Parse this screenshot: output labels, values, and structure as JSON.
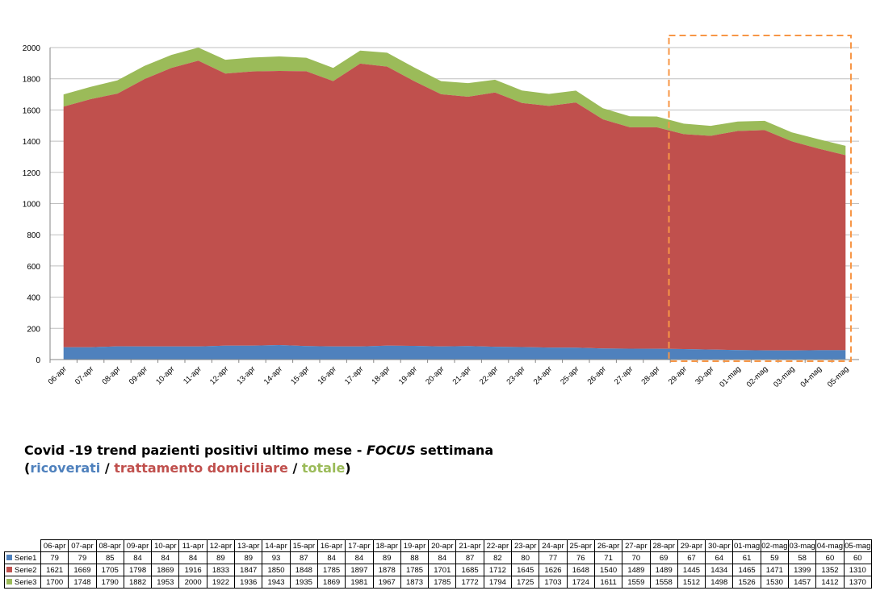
{
  "chart_data": {
    "type": "area",
    "stacked": true,
    "categories": [
      "06-apr",
      "07-apr",
      "08-apr",
      "09-apr",
      "10-apr",
      "11-apr",
      "12-apr",
      "13-apr",
      "14-apr",
      "15-apr",
      "16-apr",
      "17-apr",
      "18-apr",
      "19-apr",
      "20-apr",
      "21-apr",
      "22-apr",
      "23-apr",
      "24-apr",
      "25-apr",
      "26-apr",
      "27-apr",
      "28-apr",
      "29-apr",
      "30-apr",
      "01-mag",
      "02-mag",
      "03-mag",
      "04-mag",
      "05-mag"
    ],
    "series": [
      {
        "name": "Serie1",
        "color": "#4F81BD",
        "values": [
          79,
          79,
          85,
          84,
          84,
          84,
          89,
          89,
          93,
          87,
          84,
          84,
          89,
          88,
          84,
          87,
          82,
          80,
          77,
          76,
          71,
          70,
          69,
          67,
          64,
          61,
          59,
          58,
          60,
          60
        ]
      },
      {
        "name": "Serie2",
        "color": "#C0504D",
        "values": [
          1621,
          1669,
          1705,
          1798,
          1869,
          1916,
          1833,
          1847,
          1850,
          1848,
          1785,
          1897,
          1878,
          1785,
          1701,
          1685,
          1712,
          1645,
          1626,
          1648,
          1540,
          1489,
          1489,
          1445,
          1434,
          1465,
          1471,
          1399,
          1352,
          1310
        ]
      },
      {
        "name": "Serie3",
        "color": "#9BBB59",
        "values": [
          1700,
          1748,
          1790,
          1882,
          1953,
          2000,
          1922,
          1936,
          1943,
          1935,
          1869,
          1981,
          1967,
          1873,
          1785,
          1772,
          1794,
          1725,
          1703,
          1724,
          1611,
          1559,
          1558,
          1512,
          1498,
          1526,
          1530,
          1457,
          1412,
          1370
        ]
      }
    ],
    "ylim": [
      0,
      2000
    ],
    "yticks": [
      0,
      200,
      400,
      600,
      800,
      1000,
      1200,
      1400,
      1600,
      1800,
      2000
    ],
    "grid": true,
    "focus_range": [
      "28-apr",
      "05-mag"
    ],
    "focus_color": "#F79646"
  },
  "caption": {
    "line1_a": "Covid -19 trend pazienti positivi ultimo mese - ",
    "line1_focus": "FOCUS",
    "line1_b": " settimana",
    "open": "(",
    "ricoverati": "ricoverati",
    "sep": " / ",
    "trattamento": "trattamento domiciliare",
    "totale": "totale",
    "close": ")"
  }
}
